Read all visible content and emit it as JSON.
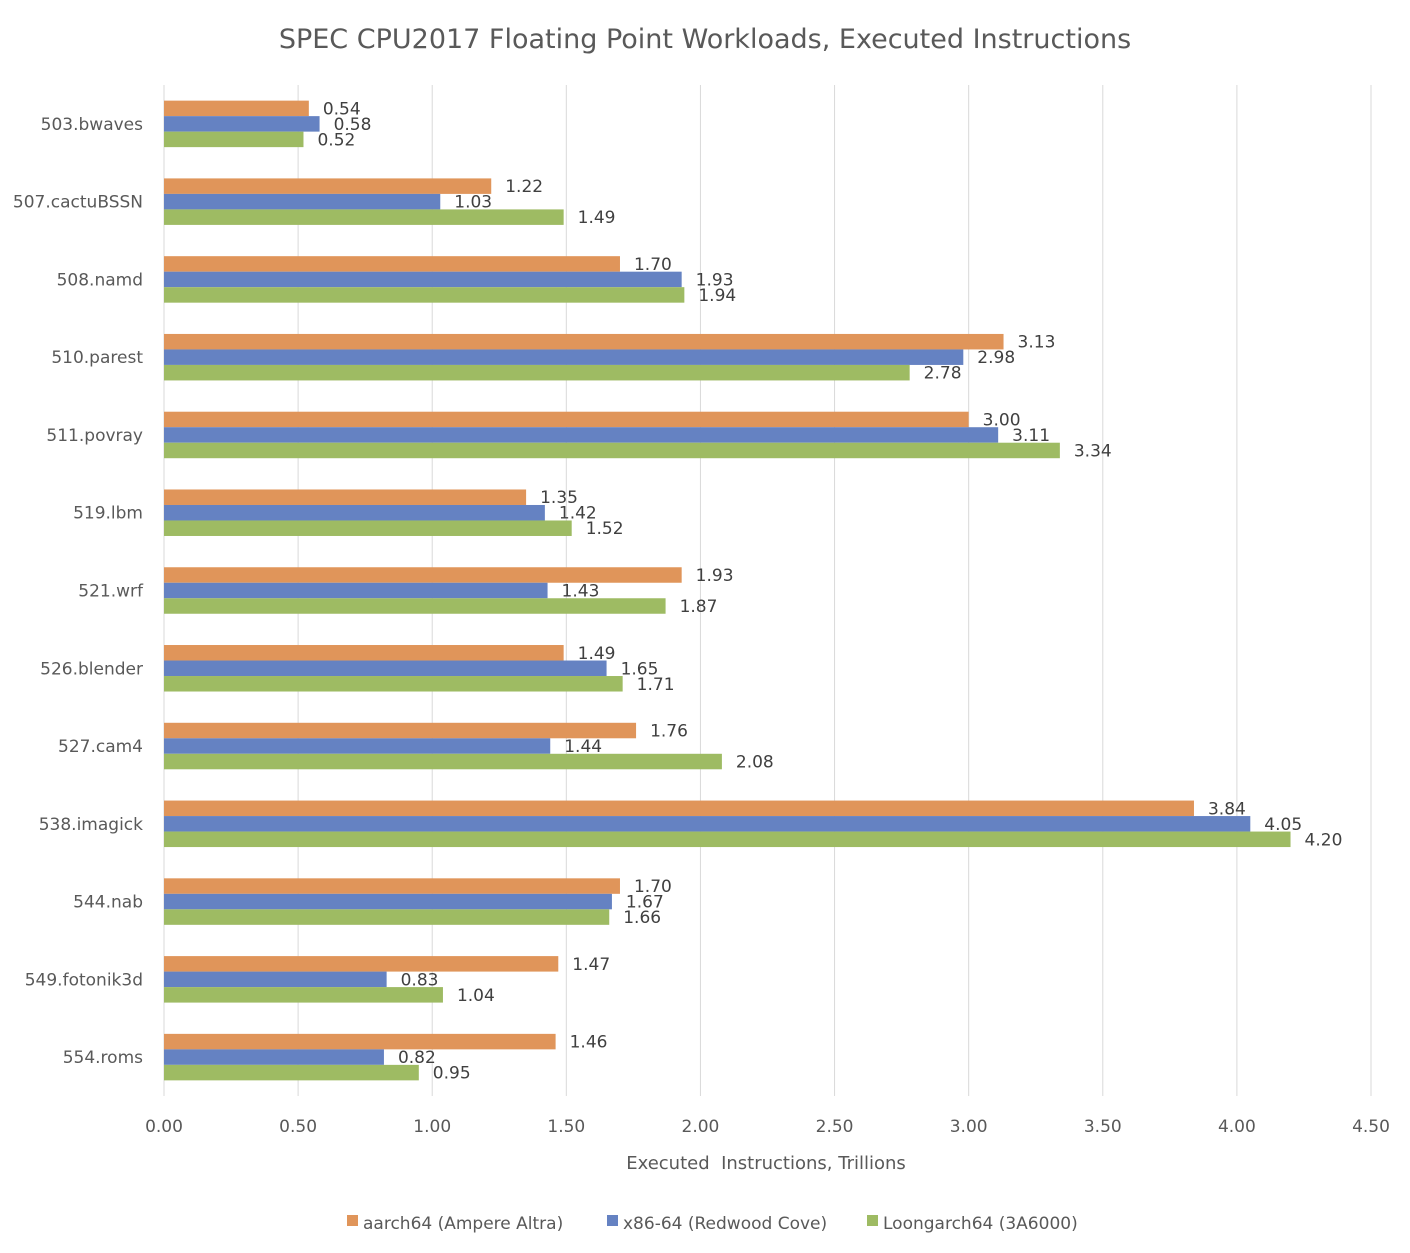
{
  "chart_data": {
    "type": "bar",
    "orientation": "horizontal",
    "title": "SPEC CPU2017 Floating Point Workloads, Executed Instructions",
    "xlabel": "Executed  Instructions, Trillions",
    "ylabel": "",
    "xlim": [
      0,
      4.5
    ],
    "x_ticks": [
      "0.00",
      "0.50",
      "1.00",
      "1.50",
      "2.00",
      "2.50",
      "3.00",
      "3.50",
      "4.00",
      "4.50"
    ],
    "grid": true,
    "legend_position": "bottom",
    "categories": [
      "503.bwaves",
      "507.cactuBSSN",
      "508.namd",
      "510.parest",
      "511.povray",
      "519.lbm",
      "521.wrf",
      "526.blender",
      "527.cam4",
      "538.imagick",
      "544.nab",
      "549.fotonik3d",
      "554.roms"
    ],
    "series": [
      {
        "name": "aarch64 (Ampere Altra)",
        "color": "#e0955a",
        "values": [
          0.54,
          1.22,
          1.7,
          3.13,
          3.0,
          1.35,
          1.93,
          1.49,
          1.76,
          3.84,
          1.7,
          1.47,
          1.46
        ]
      },
      {
        "name": "x86-64 (Redwood Cove)",
        "color": "#6582c2",
        "values": [
          0.58,
          1.03,
          1.93,
          2.98,
          3.11,
          1.42,
          1.43,
          1.65,
          1.44,
          4.05,
          1.67,
          0.83,
          0.82
        ]
      },
      {
        "name": "Loongarch64 (3A6000)",
        "color": "#9ebb63",
        "values": [
          0.52,
          1.49,
          1.94,
          2.78,
          3.34,
          1.52,
          1.87,
          1.71,
          2.08,
          4.2,
          1.66,
          1.04,
          0.95
        ]
      }
    ]
  }
}
